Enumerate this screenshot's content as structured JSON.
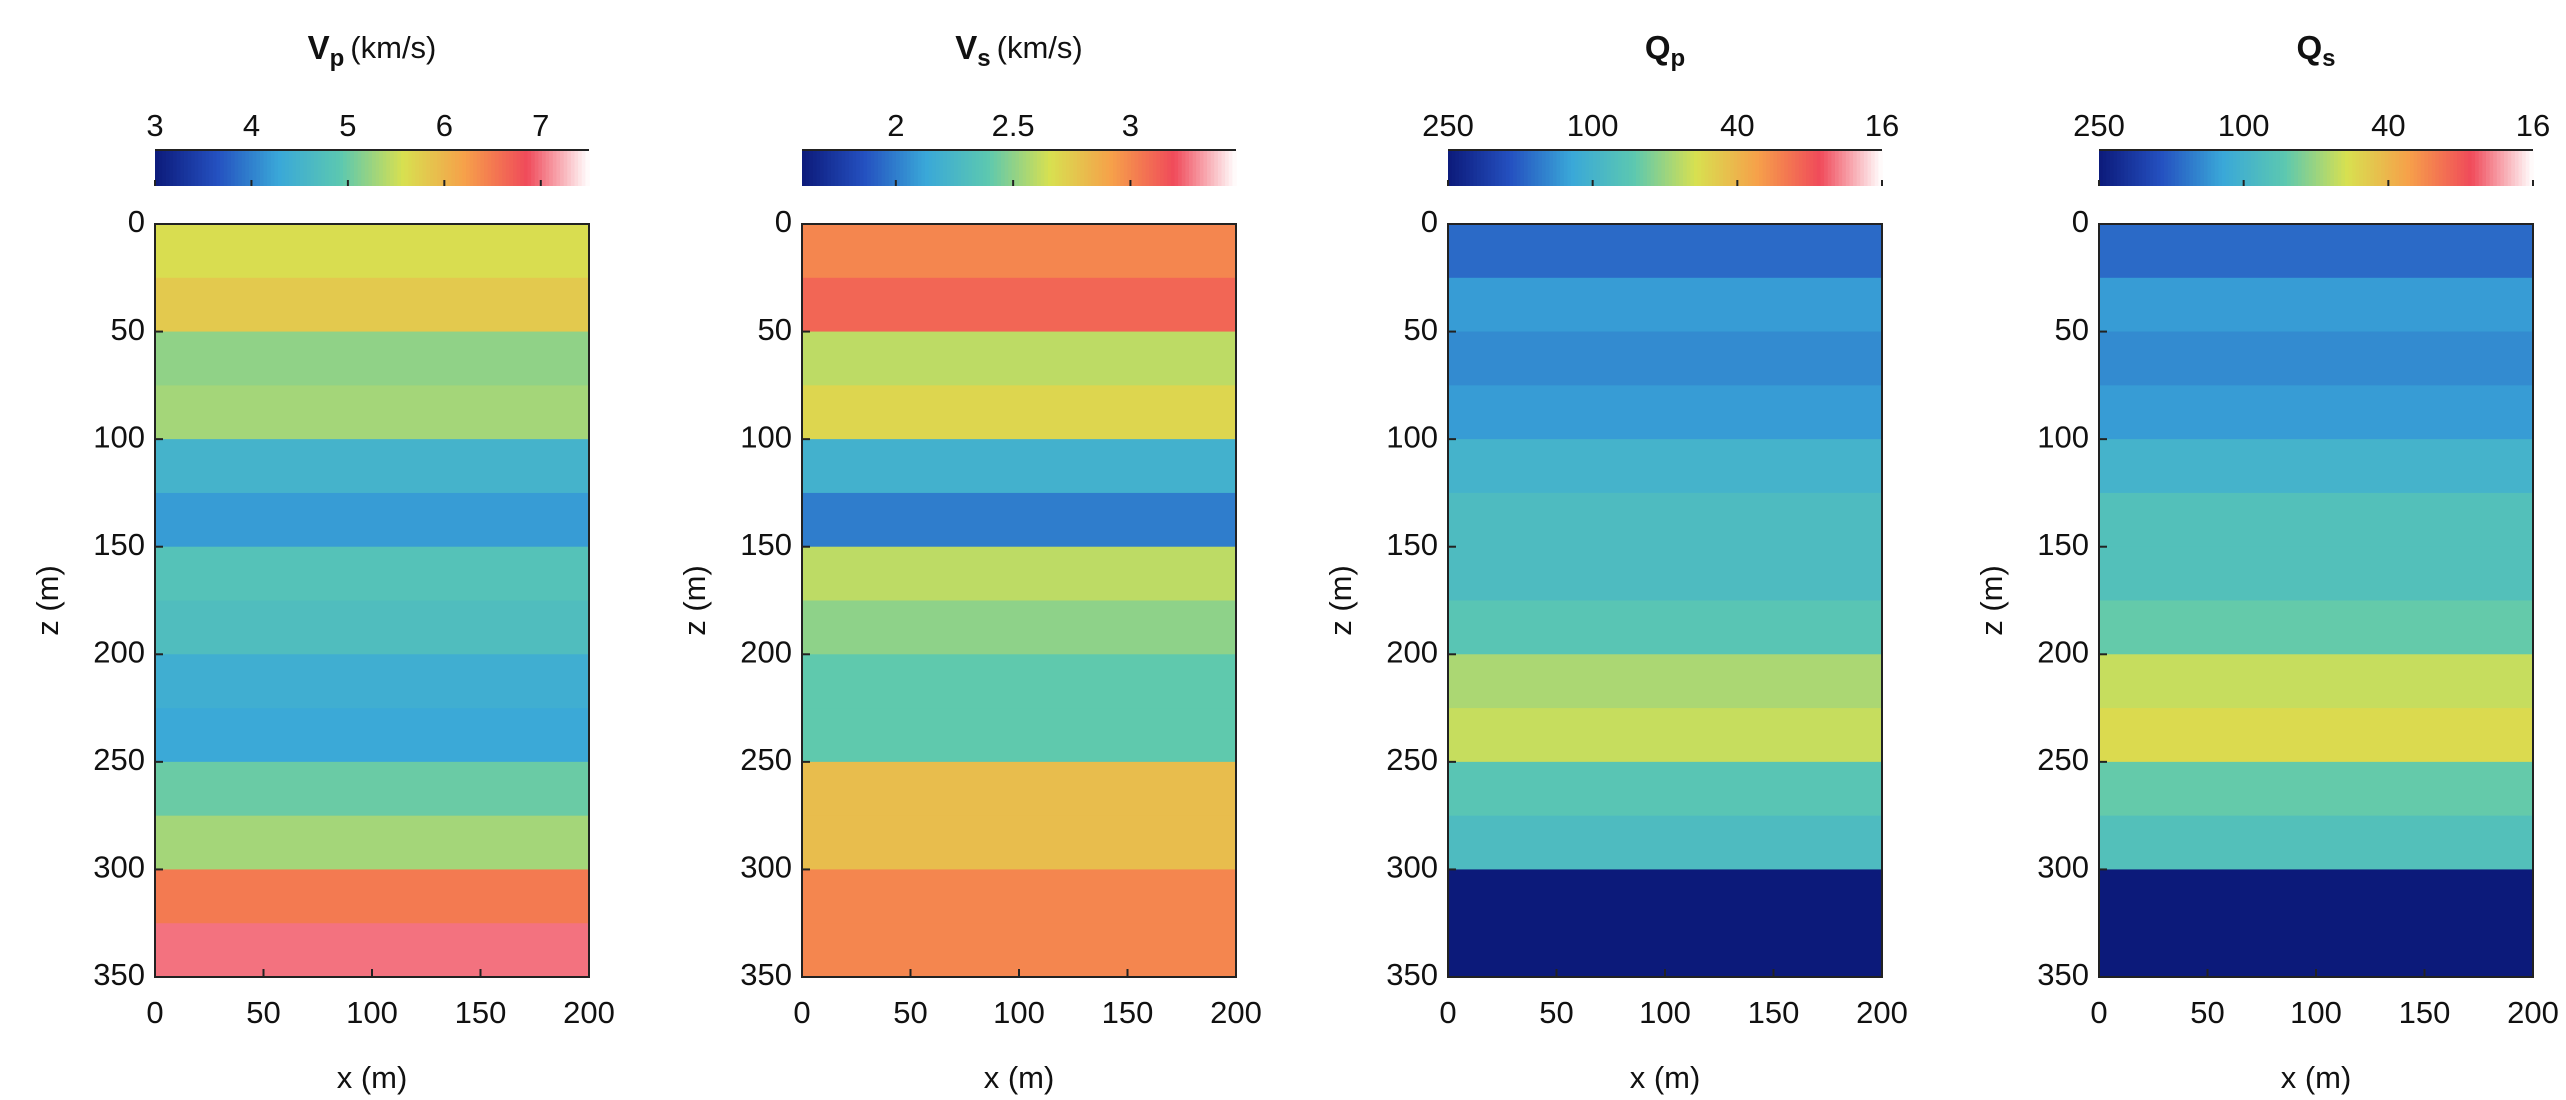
{
  "chart_data": [
    {
      "type": "heatmap",
      "title": {
        "symbol": "V",
        "subscript": "p",
        "unit": "(km/s)"
      },
      "xlabel": "x (m)",
      "ylabel": "z (m)",
      "xlim": [
        0,
        200
      ],
      "xticks": [
        0,
        50,
        100,
        150,
        200
      ],
      "ylim": [
        0,
        350
      ],
      "yticks": [
        0,
        50,
        100,
        150,
        200,
        250,
        300,
        350
      ],
      "yreverse": true,
      "y_edges": [
        0,
        25,
        50,
        75,
        100,
        125,
        150,
        175,
        200,
        225,
        250,
        275,
        300,
        325,
        350
      ],
      "values": [
        5.6,
        5.8,
        5.2,
        5.3,
        4.5,
        4.2,
        4.8,
        4.7,
        4.4,
        4.3,
        5.0,
        5.3,
        6.5,
        7.0
      ],
      "clim": [
        3,
        7.5
      ],
      "cticks": [
        3,
        4,
        5,
        6,
        7
      ],
      "clog": false,
      "colormap": [
        "#0c1a7a",
        "#2450c0",
        "#3aa8d8",
        "#5cc8b0",
        "#d8e050",
        "#f6a04a",
        "#f04a5a",
        "#ffffff"
      ]
    },
    {
      "type": "heatmap",
      "title": {
        "symbol": "V",
        "subscript": "s",
        "unit": "(km/s)"
      },
      "xlabel": "x (m)",
      "ylabel": "z (m)",
      "xlim": [
        0,
        200
      ],
      "xticks": [
        0,
        50,
        100,
        150,
        200
      ],
      "ylim": [
        0,
        350
      ],
      "yticks": [
        0,
        50,
        100,
        150,
        200,
        250,
        300,
        350
      ],
      "yreverse": true,
      "y_edges": [
        0,
        25,
        50,
        75,
        100,
        125,
        150,
        175,
        200,
        225,
        250,
        275,
        300,
        325,
        350
      ],
      "values": [
        3.0,
        3.1,
        2.6,
        2.7,
        2.2,
        2.0,
        2.6,
        2.5,
        2.4,
        2.4,
        2.8,
        2.8,
        3.0,
        3.0
      ],
      "clim": [
        1.6,
        3.45
      ],
      "cticks": [
        2,
        2.5,
        3
      ],
      "clog": false,
      "colormap": [
        "#0c1a7a",
        "#2450c0",
        "#3aa8d8",
        "#5cc8b0",
        "#d8e050",
        "#f6a04a",
        "#f04a5a",
        "#ffffff"
      ]
    },
    {
      "type": "heatmap",
      "title": {
        "symbol": "Q",
        "subscript": "p"
      },
      "xlabel": "x (m)",
      "ylabel": "z (m)",
      "xlim": [
        0,
        200
      ],
      "xticks": [
        0,
        50,
        100,
        150,
        200
      ],
      "ylim": [
        0,
        350
      ],
      "yticks": [
        0,
        50,
        100,
        150,
        200,
        250,
        300,
        350
      ],
      "yreverse": true,
      "y_edges": [
        0,
        25,
        50,
        75,
        100,
        125,
        150,
        175,
        200,
        225,
        250,
        275,
        300,
        325,
        350
      ],
      "values": [
        150,
        120,
        130,
        120,
        100,
        90,
        90,
        80,
        60,
        55,
        80,
        90,
        250,
        250
      ],
      "clim": [
        250,
        16
      ],
      "cticks": [
        250,
        100,
        40,
        16
      ],
      "clog": true,
      "colormap": [
        "#0c1a7a",
        "#2450c0",
        "#3aa8d8",
        "#5cc8b0",
        "#d8e050",
        "#f6a04a",
        "#f04a5a",
        "#ffffff"
      ]
    },
    {
      "type": "heatmap",
      "title": {
        "symbol": "Q",
        "subscript": "s"
      },
      "xlabel": "x (m)",
      "ylabel": "z (m)",
      "xlim": [
        0,
        200
      ],
      "xticks": [
        0,
        50,
        100,
        150,
        200
      ],
      "ylim": [
        0,
        350
      ],
      "yticks": [
        0,
        50,
        100,
        150,
        200,
        250,
        300,
        350
      ],
      "yreverse": true,
      "y_edges": [
        0,
        25,
        50,
        75,
        100,
        125,
        150,
        175,
        200,
        225,
        250,
        275,
        300,
        325,
        350
      ],
      "values": [
        150,
        120,
        130,
        120,
        100,
        85,
        85,
        75,
        55,
        50,
        75,
        85,
        250,
        250
      ],
      "clim": [
        250,
        16
      ],
      "cticks": [
        250,
        100,
        40,
        16
      ],
      "clog": true,
      "colormap": [
        "#0c1a7a",
        "#2450c0",
        "#3aa8d8",
        "#5cc8b0",
        "#d8e050",
        "#f6a04a",
        "#f04a5a",
        "#ffffff"
      ]
    }
  ]
}
